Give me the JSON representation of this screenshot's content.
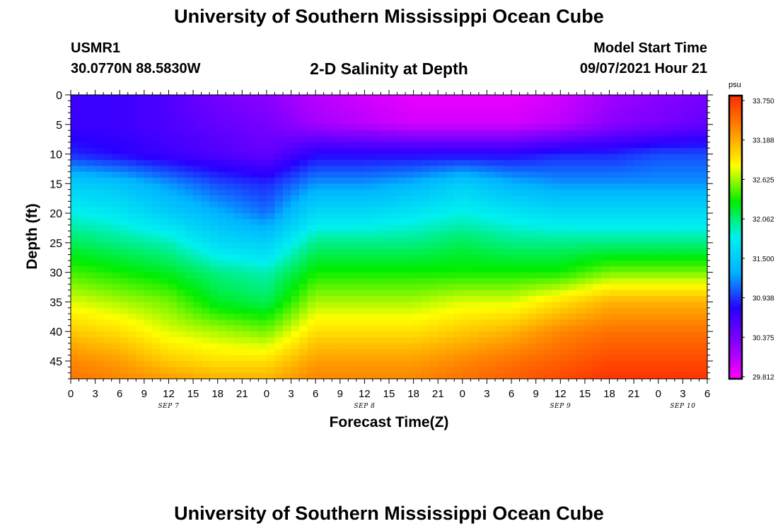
{
  "page": {
    "title_top": "University of Southern Mississippi Ocean Cube",
    "title_bottom": "University of Southern Mississippi Ocean Cube",
    "station_id": "USMR1",
    "station_coords": "30.0770N  88.5830W",
    "model_start_label": "Model Start Time",
    "model_start_value": "09/07/2021 Hour 21"
  },
  "chart_data": {
    "type": "heatmap",
    "title": "2-D Salinity at Depth",
    "xlabel": "Forecast Time(Z)",
    "ylabel": "Depth (ft)",
    "ylim": [
      0,
      48
    ],
    "y_ticks": [
      "0",
      "5",
      "10",
      "15",
      "20",
      "25",
      "30",
      "35",
      "40",
      "45"
    ],
    "x_ticks": [
      "0",
      "3",
      "6",
      "9",
      "12",
      "15",
      "18",
      "21",
      "0",
      "3",
      "6",
      "9",
      "12",
      "15",
      "18",
      "21",
      "0",
      "3",
      "6",
      "9",
      "12",
      "15",
      "18",
      "21",
      "0",
      "3",
      "6"
    ],
    "date_labels": [
      "SEP 7",
      "SEP 8",
      "SEP 9",
      "SEP 10"
    ],
    "colorbar": {
      "unit": "psu",
      "ticks": [
        "33.750",
        "33.188",
        "32.625",
        "32.062",
        "31.500",
        "30.938",
        "30.375",
        "29.812"
      ],
      "range": [
        29.812,
        33.75
      ],
      "colors": [
        "#ff00ff",
        "#8a00ff",
        "#2800ff",
        "#00b4ff",
        "#00f0f0",
        "#00ee00",
        "#ffff00",
        "#ff9000",
        "#ff2a00"
      ]
    },
    "forecast_hours": [
      0,
      6,
      12,
      18,
      24,
      30,
      36,
      42,
      48,
      54,
      60,
      66,
      72,
      78
    ],
    "depths_ft": [
      0,
      5,
      10,
      15,
      20,
      25,
      30,
      35,
      40,
      45,
      48
    ],
    "salinity_psu": [
      [
        30.7,
        30.7,
        30.6,
        30.4,
        30.3,
        30.1,
        30.0,
        29.9,
        29.9,
        29.9,
        30.0,
        30.2,
        30.3,
        30.4
      ],
      [
        30.7,
        30.7,
        30.6,
        30.5,
        30.4,
        30.2,
        30.1,
        30.0,
        30.0,
        30.0,
        30.1,
        30.3,
        30.4,
        30.5
      ],
      [
        30.9,
        30.8,
        30.7,
        30.6,
        30.5,
        30.8,
        30.8,
        30.8,
        30.8,
        30.8,
        30.9,
        30.9,
        31.0,
        31.0
      ],
      [
        31.5,
        31.4,
        31.2,
        31.0,
        30.9,
        31.2,
        31.2,
        31.3,
        31.5,
        31.3,
        31.2,
        31.2,
        31.2,
        31.2
      ],
      [
        31.8,
        31.7,
        31.5,
        31.3,
        31.1,
        31.6,
        31.6,
        31.7,
        31.8,
        31.7,
        31.6,
        31.6,
        31.6,
        31.6
      ],
      [
        32.1,
        32.0,
        31.9,
        31.6,
        31.5,
        32.0,
        32.0,
        32.0,
        32.1,
        32.0,
        32.0,
        32.0,
        32.0,
        32.0
      ],
      [
        32.4,
        32.3,
        32.2,
        32.0,
        31.9,
        32.3,
        32.3,
        32.3,
        32.3,
        32.3,
        32.3,
        32.5,
        32.5,
        32.5
      ],
      [
        32.7,
        32.6,
        32.5,
        32.2,
        32.1,
        32.6,
        32.6,
        32.6,
        32.7,
        32.7,
        32.9,
        33.1,
        33.1,
        33.1
      ],
      [
        33.0,
        32.9,
        32.7,
        32.6,
        32.5,
        32.9,
        32.9,
        32.9,
        33.0,
        33.1,
        33.3,
        33.4,
        33.4,
        33.4
      ],
      [
        33.3,
        33.2,
        33.0,
        32.9,
        32.9,
        33.2,
        33.2,
        33.2,
        33.3,
        33.4,
        33.5,
        33.6,
        33.6,
        33.6
      ],
      [
        33.4,
        33.3,
        33.2,
        33.1,
        33.1,
        33.3,
        33.3,
        33.3,
        33.4,
        33.5,
        33.6,
        33.7,
        33.7,
        33.7
      ]
    ]
  }
}
